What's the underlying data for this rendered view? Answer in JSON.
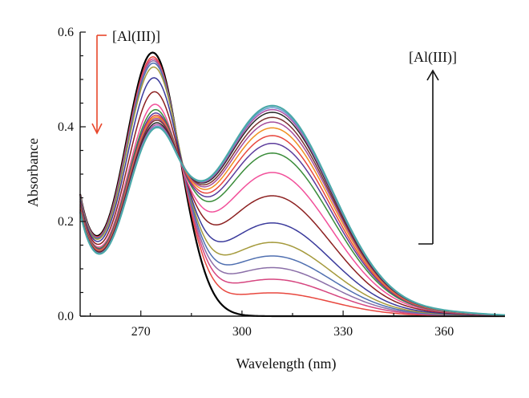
{
  "chart_data": {
    "type": "line",
    "title": "",
    "xlabel": "Wavelength (nm)",
    "ylabel": "Absorbance",
    "xlim": [
      252,
      378
    ],
    "ylim": [
      0,
      0.6
    ],
    "x_ticks": [
      270,
      300,
      330,
      360
    ],
    "x_tick_labels": [
      "270",
      "300",
      "330",
      "360"
    ],
    "y_ticks": [
      0,
      0.2,
      0.4,
      0.6
    ],
    "y_tick_labels": [
      "0.0",
      "0.2",
      "0.4",
      "0.6"
    ],
    "grid": false,
    "legend": "none",
    "isosbestic_point": {
      "x": 288,
      "y": 0.37
    },
    "annotations": [
      {
        "text": "[Al(III)]",
        "arrow": "down",
        "color": "#e8462a",
        "x": 264,
        "y_from": 0.59,
        "y_to": 0.385
      },
      {
        "text": "[Al(III)]",
        "arrow": "up",
        "color": "#111111",
        "x": 358,
        "y_from": 0.15,
        "y_to": 0.52
      }
    ],
    "series": [
      {
        "color": "#000000",
        "A": 0.55,
        "C": 0.0,
        "base": 0.24,
        "dip": 0.035
      },
      {
        "color": "#e8473e",
        "A": 0.535,
        "C": 0.06,
        "base": 0.239,
        "dip": 0.035
      },
      {
        "color": "#d6457f",
        "A": 0.527,
        "C": 0.095,
        "base": 0.238,
        "dip": 0.035
      },
      {
        "color": "#8b6fa8",
        "A": 0.52,
        "C": 0.125,
        "base": 0.237,
        "dip": 0.035
      },
      {
        "color": "#4f6fb0",
        "A": 0.512,
        "C": 0.155,
        "base": 0.236,
        "dip": 0.034
      },
      {
        "color": "#a59a3c",
        "A": 0.5,
        "C": 0.19,
        "base": 0.234,
        "dip": 0.033
      },
      {
        "color": "#3b3b9c",
        "A": 0.472,
        "C": 0.24,
        "base": 0.231,
        "dip": 0.032
      },
      {
        "color": "#8c2020",
        "A": 0.435,
        "C": 0.31,
        "base": 0.227,
        "dip": 0.031
      },
      {
        "color": "#f2509a",
        "A": 0.402,
        "C": 0.37,
        "base": 0.223,
        "dip": 0.03
      },
      {
        "color": "#3a8c3a",
        "A": 0.385,
        "C": 0.42,
        "base": 0.221,
        "dip": 0.028
      },
      {
        "color": "#5c3c9c",
        "A": 0.375,
        "C": 0.445,
        "base": 0.219,
        "dip": 0.027
      },
      {
        "color": "#e8473e",
        "A": 0.368,
        "C": 0.465,
        "base": 0.217,
        "dip": 0.026
      },
      {
        "color": "#f09020",
        "A": 0.362,
        "C": 0.485,
        "base": 0.215,
        "dip": 0.025
      },
      {
        "color": "#a44d9c",
        "A": 0.357,
        "C": 0.5,
        "base": 0.213,
        "dip": 0.025
      },
      {
        "color": "#7a3030",
        "A": 0.352,
        "C": 0.512,
        "base": 0.212,
        "dip": 0.024
      },
      {
        "color": "#2a2a2a",
        "A": 0.345,
        "C": 0.525,
        "base": 0.21,
        "dip": 0.024
      },
      {
        "color": "#b050a8",
        "A": 0.34,
        "C": 0.532,
        "base": 0.209,
        "dip": 0.023
      },
      {
        "color": "#6a9ad0",
        "A": 0.336,
        "C": 0.537,
        "base": 0.208,
        "dip": 0.023
      },
      {
        "color": "#4aa8a8",
        "A": 0.333,
        "C": 0.542,
        "base": 0.207,
        "dip": 0.023
      }
    ]
  }
}
